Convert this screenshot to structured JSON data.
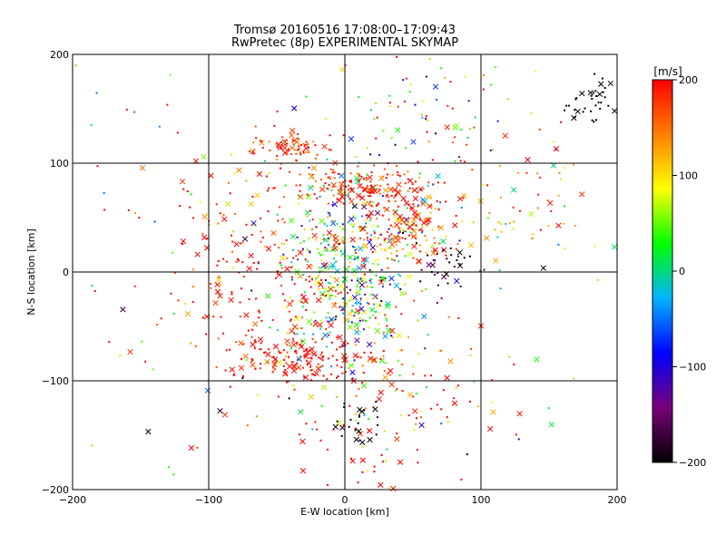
{
  "chart_data": {
    "type": "scatter",
    "title": "Tromsø 20160516 17:08:00–17:09:43",
    "subtitle": "RwPretec (8p) EXPERIMENTAL SKYMAP",
    "xlabel": "E-W location [km]",
    "ylabel": "N-S location [km]",
    "xlim": [
      -200,
      200
    ],
    "ylim": [
      -200,
      200
    ],
    "x_ticks": [
      -200,
      -100,
      0,
      100,
      200
    ],
    "y_ticks": [
      -200,
      -100,
      0,
      100,
      200
    ],
    "x_tick_labels": [
      "−200",
      "−100",
      "0",
      "100",
      "200"
    ],
    "y_tick_labels": [
      "−200",
      "−100",
      "0",
      "100",
      "200"
    ],
    "grid": true,
    "colorbar": {
      "label": "[m/s]",
      "range": [
        -200,
        200
      ],
      "ticks": [
        200,
        100,
        0,
        -100,
        -200
      ],
      "tick_labels": [
        "200",
        "100",
        "0",
        "−100",
        "−200"
      ],
      "colors": [
        "#000000",
        "#7a007a",
        "#0000ff",
        "#00b4ff",
        "#00ff00",
        "#ffff00",
        "#ff8000",
        "#ff0000"
      ],
      "placement": "right"
    },
    "markers": [
      "cross",
      "dot"
    ],
    "clusters": [
      {
        "x": 0,
        "y": 0,
        "sx": 25,
        "sy": 45,
        "n": 420,
        "vmu": 20,
        "vsd": 90
      },
      {
        "x": 10,
        "y": 80,
        "sx": 25,
        "sy": 8,
        "n": 140,
        "vmu": 190,
        "vsd": 30
      },
      {
        "x": 45,
        "y": 40,
        "sx": 20,
        "sy": 15,
        "n": 170,
        "vmu": 160,
        "vsd": 70
      },
      {
        "x": -35,
        "y": 115,
        "sx": 15,
        "sy": 6,
        "n": 70,
        "vmu": 180,
        "vsd": 30
      },
      {
        "x": -30,
        "y": -80,
        "sx": 25,
        "sy": 10,
        "n": 130,
        "vmu": 200,
        "vsd": 25
      },
      {
        "x": -60,
        "y": -30,
        "sx": 40,
        "sy": 40,
        "n": 150,
        "vmu": 200,
        "vsd": 20
      },
      {
        "x": -80,
        "y": 40,
        "sx": 35,
        "sy": 35,
        "n": 70,
        "vmu": 180,
        "vsd": 60
      },
      {
        "x": 30,
        "y": -120,
        "sx": 45,
        "sy": 45,
        "n": 130,
        "vmu": 170,
        "vsd": 70
      },
      {
        "x": 70,
        "y": 130,
        "sx": 35,
        "sy": 40,
        "n": 90,
        "vmu": 70,
        "vsd": 130
      },
      {
        "x": 180,
        "y": 155,
        "sx": 12,
        "sy": 12,
        "n": 45,
        "vmu": -200,
        "vsd": 10
      },
      {
        "x": 140,
        "y": 60,
        "sx": 20,
        "sy": 25,
        "n": 40,
        "vmu": 130,
        "vsd": 60
      },
      {
        "x": 75,
        "y": 5,
        "sx": 12,
        "sy": 12,
        "n": 35,
        "vmu": -180,
        "vsd": 40
      },
      {
        "x": 10,
        "y": -140,
        "sx": 10,
        "sy": 10,
        "n": 25,
        "vmu": -200,
        "vsd": 10
      },
      {
        "x": 0,
        "y": 0,
        "sx": 130,
        "sy": 130,
        "n": 190,
        "vmu": 80,
        "vsd": 150
      }
    ],
    "seed": 20160516
  }
}
